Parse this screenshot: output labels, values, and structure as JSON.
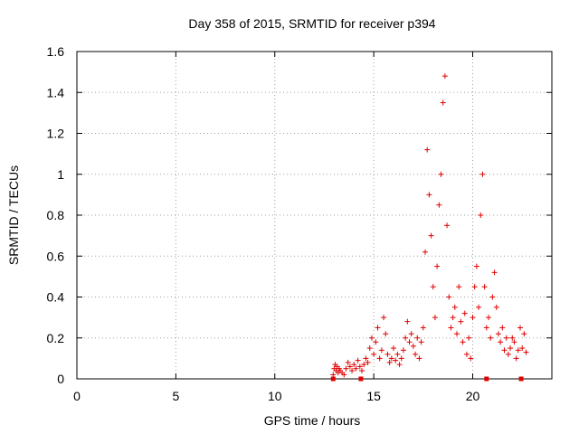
{
  "chart_data": {
    "type": "scatter",
    "title": "Day 358 of 2015, SRMTID for receiver p394",
    "xlabel": "GPS time / hours",
    "ylabel": "SRMTID / TECUs",
    "xlim": [
      0,
      24
    ],
    "ylim": [
      0,
      1.6
    ],
    "xticks": [
      0,
      5,
      10,
      15,
      20
    ],
    "xtick_labels": [
      "0",
      "5",
      "10",
      "15",
      "20"
    ],
    "yticks": [
      0,
      0.2,
      0.4,
      0.6,
      0.8,
      1.0,
      1.2,
      1.4,
      1.6
    ],
    "ytick_labels": [
      "0",
      "0.2",
      "0.4",
      "0.6",
      "0.8",
      "1",
      "1.2",
      "1.4",
      "1.6"
    ],
    "grid": true,
    "marker": "+",
    "color": "#e00000",
    "series": [
      {
        "name": "SRMTID",
        "x": [
          12.95,
          13.0,
          13.05,
          13.1,
          13.15,
          13.2,
          13.25,
          13.3,
          13.4,
          13.5,
          13.6,
          13.7,
          13.8,
          13.9,
          14.0,
          14.1,
          14.2,
          14.3,
          14.4,
          14.5,
          14.6,
          14.7,
          14.8,
          14.9,
          15.0,
          15.1,
          15.2,
          15.3,
          15.4,
          15.5,
          15.6,
          15.7,
          15.8,
          15.9,
          16.0,
          16.1,
          16.2,
          16.3,
          16.4,
          16.5,
          16.6,
          16.7,
          16.8,
          16.9,
          17.0,
          17.1,
          17.2,
          17.3,
          17.4,
          17.5,
          17.6,
          17.7,
          17.8,
          17.9,
          18.0,
          18.1,
          18.2,
          18.3,
          18.4,
          18.5,
          18.6,
          18.7,
          18.8,
          18.9,
          19.0,
          19.1,
          19.2,
          19.3,
          19.4,
          19.5,
          19.6,
          19.7,
          19.8,
          19.9,
          20.0,
          20.1,
          20.2,
          20.3,
          20.4,
          20.5,
          20.6,
          20.7,
          20.8,
          20.9,
          21.0,
          21.1,
          21.2,
          21.3,
          21.4,
          21.5,
          21.6,
          21.7,
          21.8,
          21.9,
          22.0,
          22.1,
          22.2,
          22.3,
          22.4,
          22.5,
          22.6,
          22.7
        ],
        "y": [
          0.02,
          0.05,
          0.07,
          0.04,
          0.06,
          0.03,
          0.05,
          0.04,
          0.03,
          0.02,
          0.05,
          0.08,
          0.06,
          0.04,
          0.07,
          0.05,
          0.09,
          0.06,
          0.04,
          0.07,
          0.1,
          0.08,
          0.15,
          0.2,
          0.12,
          0.18,
          0.25,
          0.1,
          0.14,
          0.3,
          0.22,
          0.12,
          0.08,
          0.1,
          0.15,
          0.09,
          0.12,
          0.07,
          0.1,
          0.14,
          0.2,
          0.28,
          0.18,
          0.22,
          0.16,
          0.12,
          0.2,
          0.1,
          0.18,
          0.25,
          0.62,
          1.12,
          0.9,
          0.7,
          0.45,
          0.3,
          0.55,
          0.85,
          1.0,
          1.35,
          1.48,
          0.75,
          0.4,
          0.25,
          0.3,
          0.35,
          0.22,
          0.45,
          0.28,
          0.18,
          0.32,
          0.12,
          0.2,
          0.1,
          0.3,
          0.45,
          0.55,
          0.35,
          0.8,
          1.0,
          0.45,
          0.25,
          0.3,
          0.2,
          0.4,
          0.52,
          0.35,
          0.22,
          0.18,
          0.25,
          0.14,
          0.2,
          0.12,
          0.15,
          0.2,
          0.18,
          0.1,
          0.14,
          0.25,
          0.15,
          0.22,
          0.13
        ]
      }
    ],
    "zero_markers_x": [
      12.95,
      14.35,
      20.7,
      22.45
    ]
  }
}
